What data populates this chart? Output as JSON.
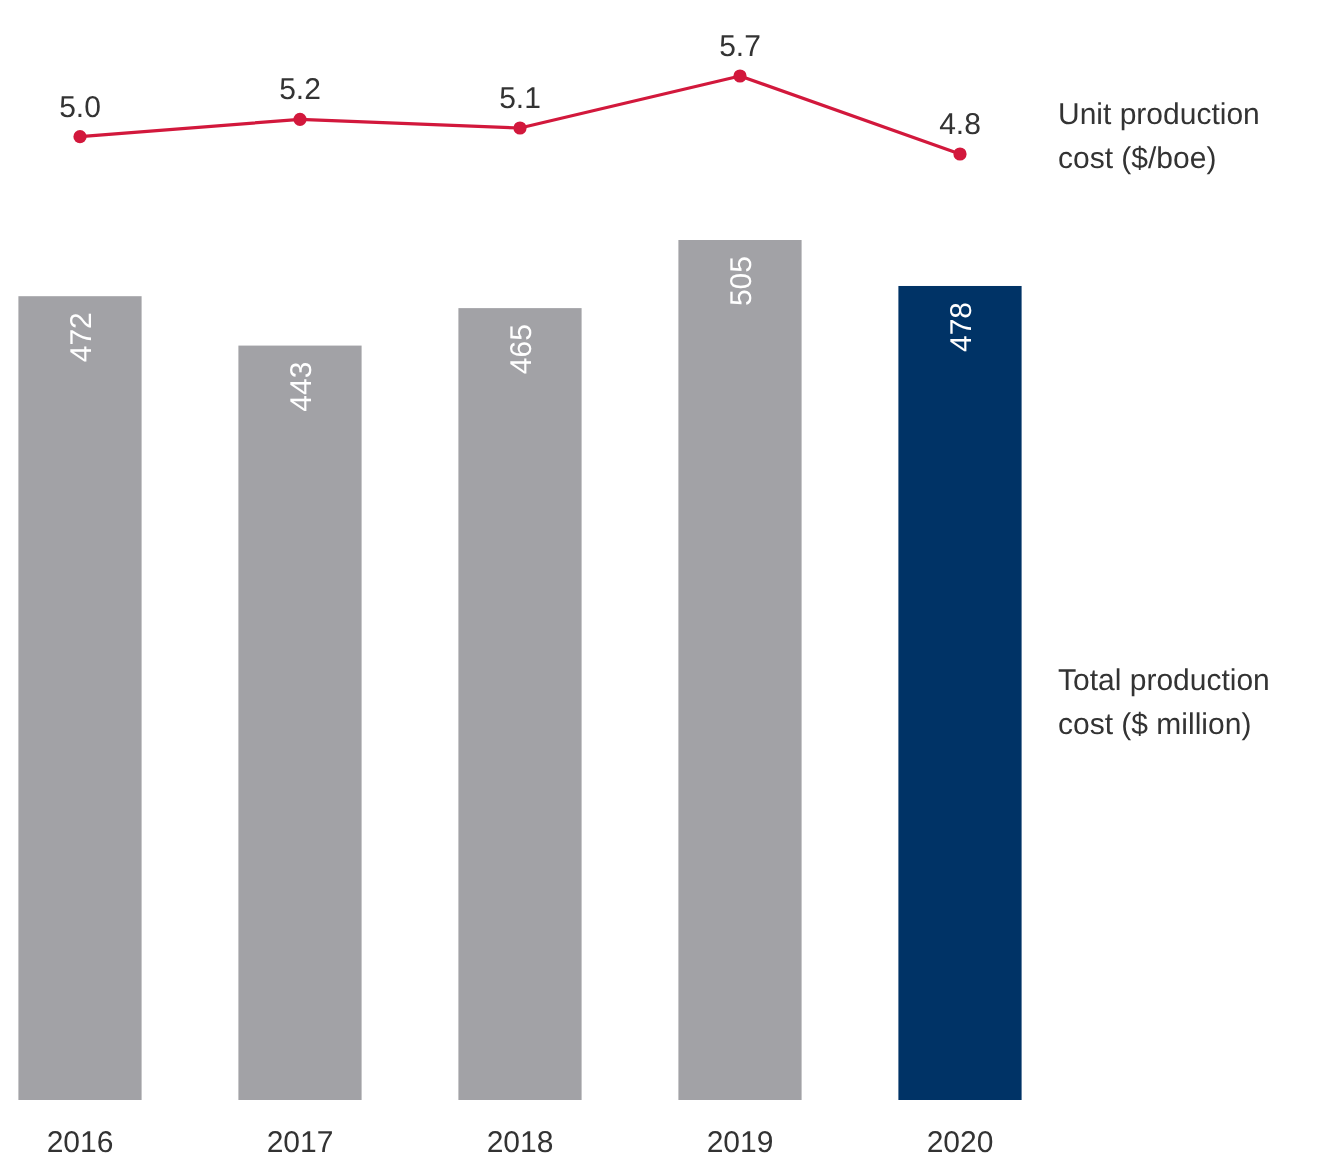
{
  "chart_data": [
    {
      "type": "line",
      "categories": [
        "2016",
        "2017",
        "2018",
        "2019",
        "2020"
      ],
      "tick_labels": false,
      "marker": "circle",
      "line_style": "solid",
      "series": [
        {
          "name": "Unit production cost ($/boe)",
          "color": "#d2183c",
          "values": [
            5.0,
            5.2,
            5.1,
            5.7,
            4.8
          ],
          "value_labels": [
            "5.0",
            "5.2",
            "5.1",
            "5.7",
            "4.8"
          ]
        }
      ]
    },
    {
      "type": "bar",
      "categories": [
        "2016",
        "2017",
        "2018",
        "2019",
        "2020"
      ],
      "tick_labels": "x",
      "data_labels": true,
      "series": [
        {
          "name": "Total production cost ($ million)",
          "values": [
            472,
            443,
            465,
            505,
            478
          ],
          "colors": [
            "#a2a2a6",
            "#a2a2a6",
            "#a2a2a6",
            "#a2a2a6",
            "#003366"
          ]
        }
      ]
    }
  ]
}
